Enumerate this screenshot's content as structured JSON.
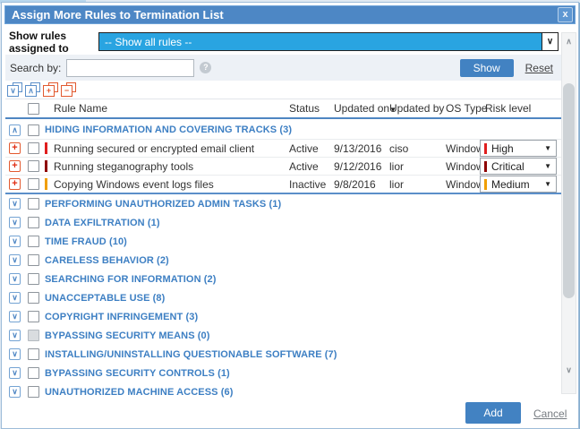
{
  "dialog": {
    "title": "Assign More Rules to Termination List",
    "close_glyph": "x"
  },
  "filter": {
    "label": "Show rules assigned to",
    "selected_option": "-- Show all rules --",
    "arrow_glyph": "∨"
  },
  "search": {
    "label": "Search by:",
    "value": "",
    "placeholder": "",
    "help_glyph": "?",
    "show_button": "Show",
    "reset_link": "Reset"
  },
  "toolbar": {
    "icons": [
      {
        "name": "expand-all-icon",
        "glyph": "∨",
        "color": "#5b8fc9"
      },
      {
        "name": "collapse-all-icon",
        "glyph": "∧",
        "color": "#5b8fc9"
      },
      {
        "name": "check-all-icon",
        "glyph": "+",
        "color": "#e2592f"
      },
      {
        "name": "uncheck-all-icon",
        "glyph": "−",
        "color": "#e2592f"
      }
    ]
  },
  "table": {
    "columns": {
      "rule_name": "Rule Name",
      "status": "Status",
      "updated_on": "Updated on",
      "updated_by": "Updated by",
      "os_type": "OS Type",
      "risk_level": "Risk level"
    },
    "sort_indicator": "▼",
    "risk_caret": "▼",
    "groups": [
      {
        "label": "HIDING INFORMATION AND COVERING TRACKS (3)",
        "expanded": true,
        "checkbox_disabled": false,
        "rules": [
          {
            "name": "Running secured or encrypted email client",
            "status": "Active",
            "updated_on": "9/13/2016",
            "updated_by": "ciso",
            "os_type": "Windows",
            "risk_level": "High",
            "risk_color": "#e01e1e"
          },
          {
            "name": "Running steganography tools",
            "status": "Active",
            "updated_on": "9/12/2016",
            "updated_by": "lior",
            "os_type": "Windows",
            "risk_level": "Critical",
            "risk_color": "#8e0000"
          },
          {
            "name": "Copying Windows event logs files",
            "status": "Inactive",
            "updated_on": "9/8/2016",
            "updated_by": "lior",
            "os_type": "Windows",
            "risk_level": "Medium",
            "risk_color": "#f09e00"
          }
        ]
      },
      {
        "label": "PERFORMING UNAUTHORIZED ADMIN TASKS (1)",
        "expanded": false,
        "checkbox_disabled": false
      },
      {
        "label": "DATA EXFILTRATION (1)",
        "expanded": false,
        "checkbox_disabled": false
      },
      {
        "label": "TIME FRAUD (10)",
        "expanded": false,
        "checkbox_disabled": false
      },
      {
        "label": "CARELESS BEHAVIOR (2)",
        "expanded": false,
        "checkbox_disabled": false
      },
      {
        "label": "SEARCHING FOR INFORMATION (2)",
        "expanded": false,
        "checkbox_disabled": false
      },
      {
        "label": "UNACCEPTABLE USE (8)",
        "expanded": false,
        "checkbox_disabled": false
      },
      {
        "label": "COPYRIGHT INFRINGEMENT (3)",
        "expanded": false,
        "checkbox_disabled": false
      },
      {
        "label": "BYPASSING SECURITY MEANS (0)",
        "expanded": false,
        "checkbox_disabled": true
      },
      {
        "label": "INSTALLING/UNINSTALLING QUESTIONABLE SOFTWARE (7)",
        "expanded": false,
        "checkbox_disabled": false
      },
      {
        "label": "BYPASSING SECURITY CONTROLS (1)",
        "expanded": false,
        "checkbox_disabled": false
      },
      {
        "label": "UNAUTHORIZED MACHINE ACCESS (6)",
        "expanded": false,
        "checkbox_disabled": false
      }
    ],
    "expand_glyph": "∨",
    "collapse_glyph": "∧",
    "add_rule_glyph": "+"
  },
  "scrollbar": {
    "up_glyph": "∧",
    "down_glyph": "∨"
  },
  "footer": {
    "add_button": "Add",
    "cancel_link": "Cancel"
  },
  "colors": {
    "titlebar_blue": "#4d87c5",
    "accent_blue": "#4282c2",
    "category_blue": "#3d7fc3",
    "select_highlight": "#29a4e1",
    "header_rule_blue": "#4f86c2"
  }
}
